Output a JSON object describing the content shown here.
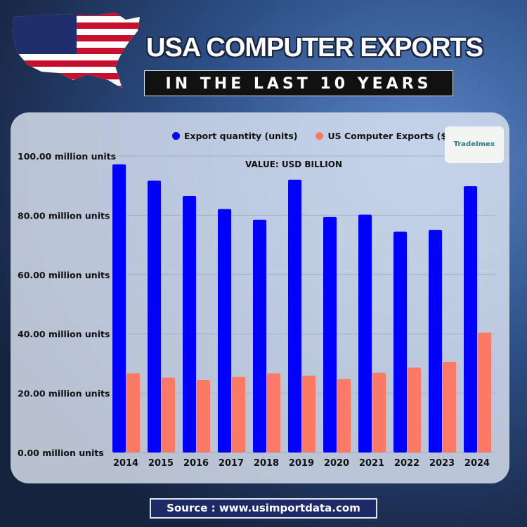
{
  "header": {
    "title": "USA COMPUTER EXPORTS",
    "subtitle": "IN THE LAST 10 YEARS"
  },
  "logo": {
    "text": "TradeImex"
  },
  "footer": {
    "source": "Source : www.usimportdata.com"
  },
  "colors": {
    "export_quantity": "#0000ff",
    "export_value": "#fa7a66"
  },
  "chart_data": {
    "type": "bar",
    "title": "",
    "annotation": "VALUE: USD BILLION",
    "categories": [
      "2014",
      "2015",
      "2016",
      "2017",
      "2018",
      "2019",
      "2020",
      "2021",
      "2022",
      "2023",
      "2024"
    ],
    "series": [
      {
        "name": "Export quantity (units)",
        "values": [
          97.2,
          91.7,
          86.5,
          82.1,
          78.5,
          92.0,
          79.4,
          80.2,
          74.5,
          75.1,
          89.8
        ]
      },
      {
        "name": "US Computer Exports ($)",
        "values": [
          26.7,
          25.2,
          24.4,
          25.5,
          26.7,
          25.9,
          24.8,
          26.9,
          28.6,
          30.6,
          40.4
        ]
      }
    ],
    "yticks": [
      "0.00 million units",
      "20.00 million units",
      "40.00 million units",
      "60.00 million units",
      "80.00 million units",
      "100.00 million units"
    ],
    "ytick_values": [
      0,
      20,
      40,
      60,
      80,
      100
    ],
    "ylim": [
      0,
      100
    ],
    "grid": true,
    "legend": "top"
  }
}
